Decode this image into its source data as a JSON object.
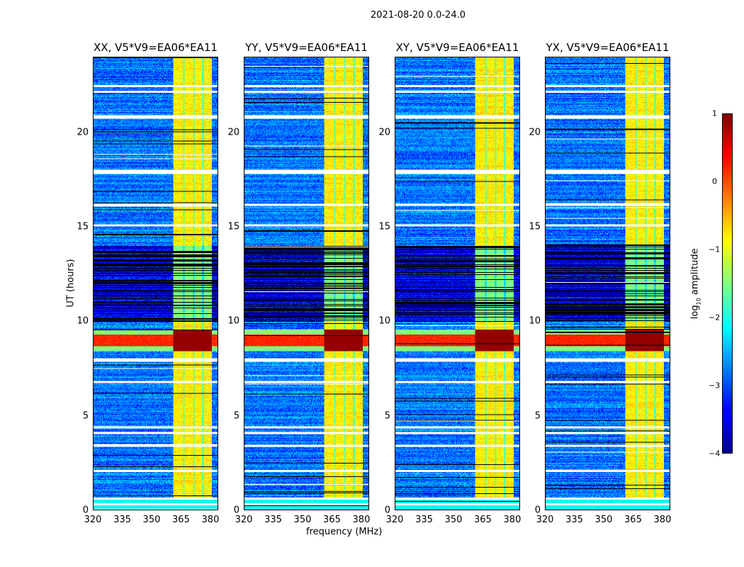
{
  "chart_data": {
    "type": "heatmap",
    "title": "2021-08-20 0.0-24.0",
    "xlabel": "frequency (MHz)",
    "ylabel": "UT (hours)",
    "xlim": [
      320,
      384
    ],
    "ylim": [
      0,
      24
    ],
    "xticks": [
      "320",
      "335",
      "350",
      "365",
      "380"
    ],
    "xtick_values": [
      320,
      335,
      350,
      365,
      380
    ],
    "yticks": [
      "0",
      "5",
      "10",
      "15",
      "20"
    ],
    "ytick_values": [
      0,
      5,
      10,
      15,
      20
    ],
    "panels": [
      {
        "title": "XX, V5*V9=EA06*EA11"
      },
      {
        "title": "YY, V5*V9=EA06*EA11"
      },
      {
        "title": "XY, V5*V9=EA06*EA11"
      },
      {
        "title": "YX, V5*V9=EA06*EA11"
      }
    ],
    "colorbar": {
      "label": "log10 amplitude",
      "range": [
        -4,
        1
      ],
      "ticks": [
        "1",
        "0",
        "−1",
        "−2",
        "−3",
        "−4"
      ],
      "tick_values": [
        1,
        0,
        -1,
        -2,
        -3,
        -4
      ],
      "colormap": "jet"
    },
    "features": {
      "background_level": -2.8,
      "strong_band_mhz": [
        361,
        381
      ],
      "strong_band_level": -0.8,
      "rfi_hours": [
        8.4,
        9.6
      ],
      "rfi_level": 0.6,
      "dark_hours": [
        10.0,
        14.0
      ],
      "flagged_hours": [
        0.3,
        0.6,
        2.05,
        3.4,
        4.1,
        4.4,
        6.8,
        7.9,
        8.0,
        15.1,
        16.2,
        17.9,
        18.0,
        20.8,
        20.9,
        22.2,
        22.5
      ]
    }
  }
}
